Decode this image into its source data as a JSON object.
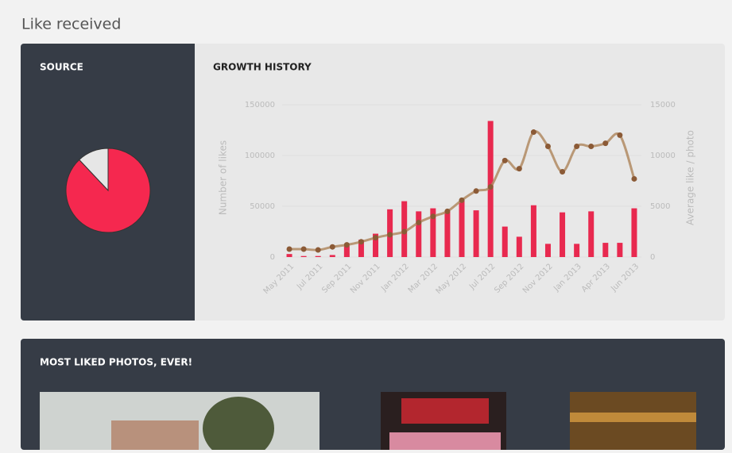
{
  "page_title": "Like received",
  "photos_title": "MOST LIKED PHOTOS, EVER!",
  "chart_data": [
    {
      "type": "pie",
      "title": "SOURCE",
      "values": [
        88,
        12
      ],
      "colors": [
        "#f5284f",
        "#e6e6e6"
      ]
    },
    {
      "type": "bar",
      "title": "GROWTH HISTORY",
      "y_label": "Number of likes",
      "y2_label": "Average like / photo",
      "categories": [
        "May 2011",
        null,
        "Jul 2011",
        null,
        "Sep 2011",
        null,
        "Nov 2011",
        null,
        "Jan 2012",
        null,
        "Mar 2012",
        null,
        "May 2012",
        null,
        "Jul 2012",
        null,
        "Sep 2012",
        null,
        "Nov 2012",
        null,
        "Jan 2013",
        null,
        "Apr 2013",
        null,
        "Jun 2013"
      ],
      "ylim": [
        0,
        150000
      ],
      "yticks": [
        0,
        50000,
        100000,
        150000
      ],
      "y2lim": [
        0,
        15000
      ],
      "y2ticks": [
        0,
        5000,
        10000,
        15000
      ],
      "grid": true,
      "series": [
        {
          "name": "Number of likes",
          "type": "bar",
          "color": "#e8294f",
          "values": [
            3000,
            1000,
            1000,
            2000,
            11000,
            17000,
            23000,
            47000,
            55000,
            45000,
            48000,
            45000,
            56000,
            46000,
            134000,
            30000,
            20000,
            51000,
            13000,
            44000,
            13000,
            45000,
            14000,
            14000,
            48000
          ]
        },
        {
          "name": "Average like / photo",
          "type": "line",
          "axis": "y2",
          "color": "#b08a62",
          "values": [
            780,
            780,
            700,
            1000,
            1200,
            1500,
            1900,
            2200,
            2500,
            3400,
            4000,
            4500,
            5600,
            6500,
            6900,
            9500,
            8700,
            12300,
            10900,
            8400,
            10900,
            10900,
            11200,
            12000,
            7700
          ]
        }
      ]
    }
  ]
}
